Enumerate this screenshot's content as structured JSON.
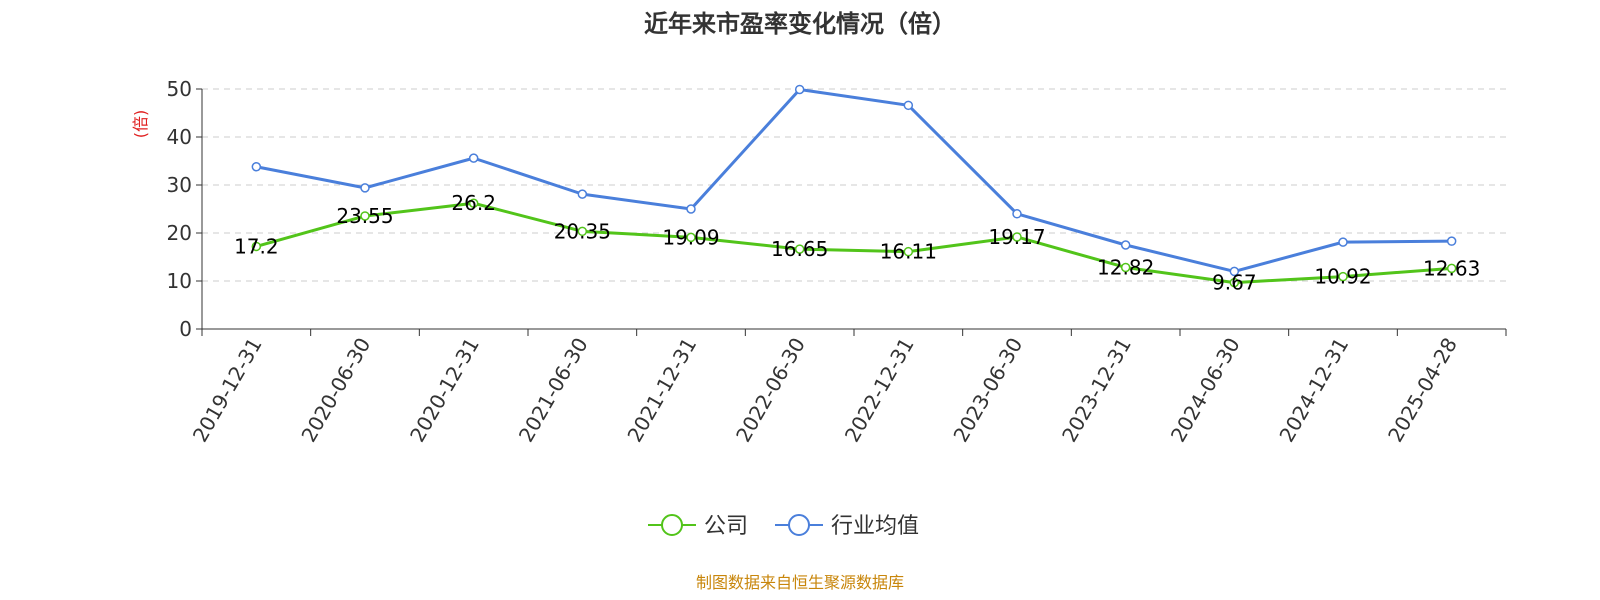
{
  "chart_data": {
    "type": "line",
    "title": "近年来市盈率变化情况（倍）",
    "ylabel": "(倍)",
    "ylim": [
      0,
      50
    ],
    "yticks": [
      0,
      10,
      20,
      30,
      40,
      50
    ],
    "categories": [
      "2019-12-31",
      "2020-06-30",
      "2020-12-31",
      "2021-06-30",
      "2021-12-31",
      "2022-06-30",
      "2022-12-31",
      "2023-06-30",
      "2023-12-31",
      "2024-06-30",
      "2024-12-31",
      "2025-04-28"
    ],
    "grid": true,
    "legend_position": "bottom-center",
    "series": [
      {
        "name": "公司",
        "color": "#52c41a",
        "values": [
          17.2,
          23.55,
          26.2,
          20.35,
          19.09,
          16.65,
          16.11,
          19.17,
          12.82,
          9.67,
          10.92,
          12.63
        ],
        "labels": [
          "17.2",
          "23.55",
          "26.2",
          "20.35",
          "19.09",
          "16.65",
          "16.11",
          "19.17",
          "12.82",
          "9.67",
          "10.92",
          "12.63"
        ]
      },
      {
        "name": "行业均值",
        "color": "#4a7fdb",
        "values": [
          33.8,
          29.4,
          35.6,
          28.1,
          25.0,
          49.9,
          46.6,
          24.0,
          17.5,
          12.0,
          18.1,
          18.3
        ]
      }
    ]
  },
  "source": "制图数据来自恒生聚源数据库",
  "colors": {
    "ylabel": "#e02020",
    "source": "#c8860b",
    "grid": "#cccccc",
    "axis": "#333333"
  }
}
